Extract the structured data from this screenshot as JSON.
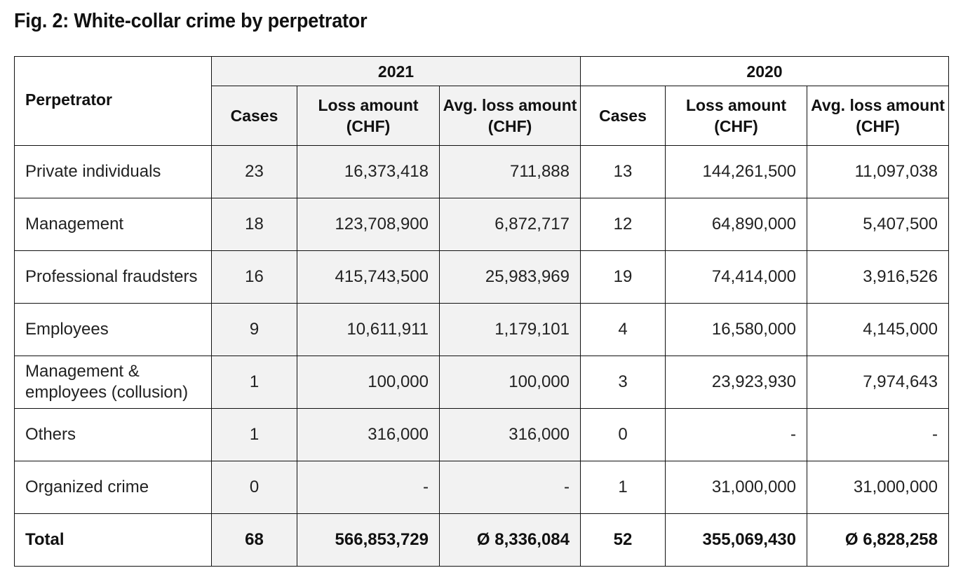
{
  "title": "Fig. 2: White-collar crime by perpetrator",
  "table": {
    "perpetrator_header": "Perpetrator",
    "groups": [
      {
        "year": "2021",
        "cases": "Cases",
        "loss": "Loss amount (CHF)",
        "avg": "Avg. loss amount (CHF)"
      },
      {
        "year": "2020",
        "cases": "Cases",
        "loss": "Loss amount (CHF)",
        "avg": "Avg. loss amount (CHF)"
      }
    ],
    "rows": [
      {
        "label": "Private individuals",
        "c21": "23",
        "l21": "16,373,418",
        "a21": "711,888",
        "c20": "13",
        "l20": "144,261,500",
        "a20": "11,097,038"
      },
      {
        "label": "Management",
        "c21": "18",
        "l21": "123,708,900",
        "a21": "6,872,717",
        "c20": "12",
        "l20": "64,890,000",
        "a20": "5,407,500"
      },
      {
        "label": "Professional fraudsters",
        "c21": "16",
        "l21": "415,743,500",
        "a21": "25,983,969",
        "c20": "19",
        "l20": "74,414,000",
        "a20": "3,916,526"
      },
      {
        "label": "Employees",
        "c21": "9",
        "l21": "10,611,911",
        "a21": "1,179,101",
        "c20": "4",
        "l20": "16,580,000",
        "a20": "4,145,000"
      },
      {
        "label": "Management & employees (collusion)",
        "c21": "1",
        "l21": "100,000",
        "a21": "100,000",
        "c20": "3",
        "l20": "23,923,930",
        "a20": "7,974,643"
      },
      {
        "label": "Others",
        "c21": "1",
        "l21": "316,000",
        "a21": "316,000",
        "c20": "0",
        "l20": "-",
        "a20": "-"
      },
      {
        "label": "Organized crime",
        "c21": "0",
        "l21": "-",
        "a21": "-",
        "c20": "1",
        "l20": "31,000,000",
        "a20": "31,000,000"
      }
    ],
    "total": {
      "label": "Total",
      "c21": "68",
      "l21": "566,853,729",
      "a21": "Ø 8,336,084",
      "c20": "52",
      "l20": "355,069,430",
      "a20": "Ø 6,828,258"
    }
  }
}
